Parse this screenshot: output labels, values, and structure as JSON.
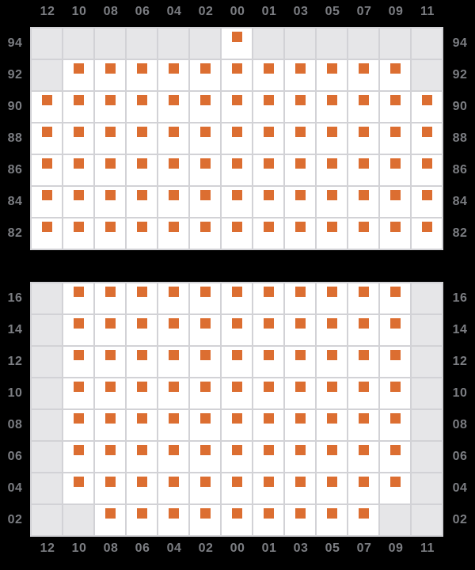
{
  "colors": {
    "background": "#000000",
    "grid_line": "#d2d2d6",
    "cell_empty": "#e6e6e8",
    "cell_data": "#ffffff",
    "marker": "#dc6e31",
    "axis_label": "#7b7d82"
  },
  "chart_data": [
    {
      "type": "heatmap",
      "panel": "top",
      "x_labels": [
        "12",
        "10",
        "08",
        "06",
        "04",
        "02",
        "00",
        "01",
        "03",
        "05",
        "07",
        "09",
        "11"
      ],
      "x_axis_position": "top",
      "y_labels": [
        "94",
        "92",
        "90",
        "88",
        "86",
        "84",
        "82"
      ],
      "y_axis_position": "both",
      "cell_legend": {
        "1": "orange marker on white cell (data present)",
        "0": "gray cell (no data)"
      },
      "matrix": [
        [
          0,
          0,
          0,
          0,
          0,
          0,
          1,
          0,
          0,
          0,
          0,
          0,
          0
        ],
        [
          0,
          1,
          1,
          1,
          1,
          1,
          1,
          1,
          1,
          1,
          1,
          1,
          0
        ],
        [
          1,
          1,
          1,
          1,
          1,
          1,
          1,
          1,
          1,
          1,
          1,
          1,
          1
        ],
        [
          1,
          1,
          1,
          1,
          1,
          1,
          1,
          1,
          1,
          1,
          1,
          1,
          1
        ],
        [
          1,
          1,
          1,
          1,
          1,
          1,
          1,
          1,
          1,
          1,
          1,
          1,
          1
        ],
        [
          1,
          1,
          1,
          1,
          1,
          1,
          1,
          1,
          1,
          1,
          1,
          1,
          1
        ],
        [
          1,
          1,
          1,
          1,
          1,
          1,
          1,
          1,
          1,
          1,
          1,
          1,
          1
        ]
      ]
    },
    {
      "type": "heatmap",
      "panel": "bottom",
      "x_labels": [
        "12",
        "10",
        "08",
        "06",
        "04",
        "02",
        "00",
        "01",
        "03",
        "05",
        "07",
        "09",
        "11"
      ],
      "x_axis_position": "bottom",
      "y_labels": [
        "16",
        "14",
        "12",
        "10",
        "08",
        "06",
        "04",
        "02"
      ],
      "y_axis_position": "both",
      "cell_legend": {
        "1": "orange marker on white cell (data present)",
        "0": "gray cell (no data)"
      },
      "matrix": [
        [
          0,
          1,
          1,
          1,
          1,
          1,
          1,
          1,
          1,
          1,
          1,
          1,
          0
        ],
        [
          0,
          1,
          1,
          1,
          1,
          1,
          1,
          1,
          1,
          1,
          1,
          1,
          0
        ],
        [
          0,
          1,
          1,
          1,
          1,
          1,
          1,
          1,
          1,
          1,
          1,
          1,
          0
        ],
        [
          0,
          1,
          1,
          1,
          1,
          1,
          1,
          1,
          1,
          1,
          1,
          1,
          0
        ],
        [
          0,
          1,
          1,
          1,
          1,
          1,
          1,
          1,
          1,
          1,
          1,
          1,
          0
        ],
        [
          0,
          1,
          1,
          1,
          1,
          1,
          1,
          1,
          1,
          1,
          1,
          1,
          0
        ],
        [
          0,
          1,
          1,
          1,
          1,
          1,
          1,
          1,
          1,
          1,
          1,
          1,
          0
        ],
        [
          0,
          0,
          1,
          1,
          1,
          1,
          1,
          1,
          1,
          1,
          1,
          0,
          0
        ]
      ]
    }
  ]
}
